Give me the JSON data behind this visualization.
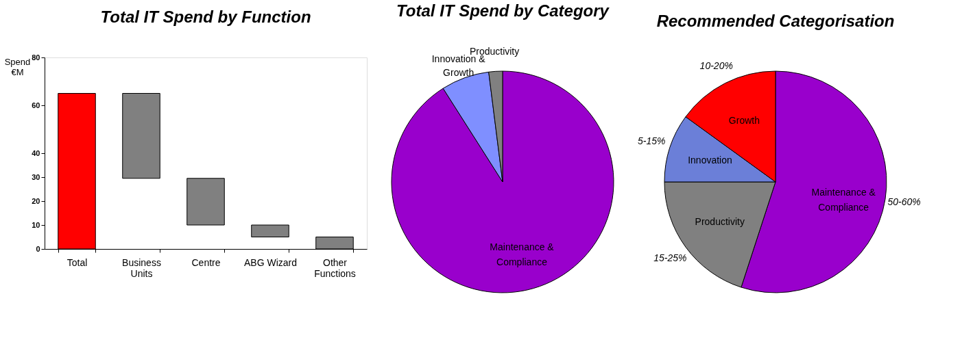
{
  "chart_data": [
    {
      "type": "bar",
      "title": "Total IT Spend by Function",
      "ylabel": "Spend €M",
      "categories": [
        "Total",
        "Business Units",
        "Centre",
        "ABG Wizard",
        "Other Functions"
      ],
      "values": [
        65,
        35.5,
        19.5,
        5,
        5
      ],
      "base": [
        0,
        29.5,
        10,
        5,
        0
      ],
      "colors": [
        "#ff0000",
        "#808080",
        "#808080",
        "#808080",
        "#808080"
      ],
      "ylim": [
        0,
        80
      ],
      "yticks": [
        0,
        10,
        20,
        30,
        40,
        60,
        80
      ],
      "grid": false
    },
    {
      "type": "pie",
      "title": "Total IT Spend by Category",
      "categories": [
        "Maintenance & Compliance",
        "Innovation & Growth",
        "Productivity"
      ],
      "values": [
        91,
        7,
        2
      ],
      "colors": [
        "#9900cc",
        "#7f8fff",
        "#808080"
      ]
    },
    {
      "type": "pie",
      "title": "Recommended Categorisation",
      "categories": [
        "Maintenance & Compliance",
        "Productivity",
        "Innovation",
        "Growth"
      ],
      "values": [
        55,
        20,
        10,
        15
      ],
      "colors": [
        "#9900cc",
        "#808080",
        "#6b7fd8",
        "#ff0000"
      ],
      "annotations": [
        "50-60%",
        "15-25%",
        "5-15%",
        "10-20%"
      ]
    }
  ]
}
